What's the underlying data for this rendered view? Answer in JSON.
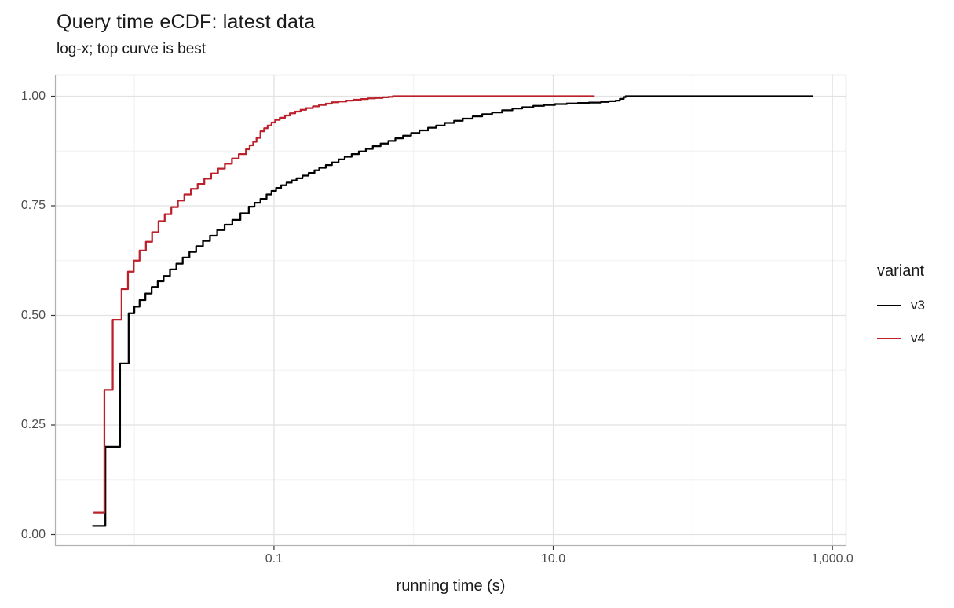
{
  "title": "Query time eCDF: latest data",
  "subtitle": "log-x; top curve is best",
  "chart_data": {
    "type": "line",
    "variant_style": "ecdf-step",
    "title": "Query time eCDF: latest data",
    "subtitle": "log-x; top curve is best",
    "xlabel": "running time (s)",
    "ylabel": "",
    "x_scale": "log10",
    "x_domain": [
      0.0027,
      1260
    ],
    "ylim": [
      0,
      1
    ],
    "grid": true,
    "legend_position": "right",
    "legend_title": "variant",
    "x_major_ticks": [
      {
        "value": 0.1,
        "label": "0.1"
      },
      {
        "value": 10,
        "label": "10.0"
      },
      {
        "value": 1000,
        "label": "1,000.0"
      }
    ],
    "x_minor_ticks": [
      0.01,
      1,
      100
    ],
    "y_major_ticks": [
      {
        "value": 0.0,
        "label": "0.00"
      },
      {
        "value": 0.25,
        "label": "0.25"
      },
      {
        "value": 0.5,
        "label": "0.50"
      },
      {
        "value": 0.75,
        "label": "0.75"
      },
      {
        "value": 1.0,
        "label": "1.00"
      }
    ],
    "y_minor_ticks": [
      0.125,
      0.375,
      0.625,
      0.875
    ],
    "theme": {
      "grid_major": "#e2e2e2",
      "grid_minor": "#f0f0f0",
      "panel_border": "#b0b0b0",
      "tick_mark": "#333333",
      "tick_text": "#4d4d4d",
      "text": "#1a1a1a",
      "background": "#ffffff"
    },
    "series": [
      {
        "name": "v3",
        "color": "#000000",
        "points": [
          [
            0.005,
            0.02
          ],
          [
            0.0062,
            0.2
          ],
          [
            0.0079,
            0.39
          ],
          [
            0.0091,
            0.505
          ],
          [
            0.01,
            0.52
          ],
          [
            0.0109,
            0.535
          ],
          [
            0.012,
            0.55
          ],
          [
            0.0133,
            0.565
          ],
          [
            0.0147,
            0.578
          ],
          [
            0.0162,
            0.59
          ],
          [
            0.018,
            0.605
          ],
          [
            0.02,
            0.618
          ],
          [
            0.0222,
            0.632
          ],
          [
            0.0248,
            0.645
          ],
          [
            0.0277,
            0.658
          ],
          [
            0.031,
            0.67
          ],
          [
            0.0348,
            0.682
          ],
          [
            0.0392,
            0.695
          ],
          [
            0.0443,
            0.707
          ],
          [
            0.0503,
            0.718
          ],
          [
            0.0575,
            0.733
          ],
          [
            0.066,
            0.748
          ],
          [
            0.0725,
            0.757
          ],
          [
            0.08,
            0.766
          ],
          [
            0.0885,
            0.776
          ],
          [
            0.096,
            0.784
          ],
          [
            0.1035,
            0.791
          ],
          [
            0.1125,
            0.797
          ],
          [
            0.123,
            0.803
          ],
          [
            0.134,
            0.808
          ],
          [
            0.145,
            0.813
          ],
          [
            0.16,
            0.819
          ],
          [
            0.177,
            0.825
          ],
          [
            0.195,
            0.831
          ],
          [
            0.211,
            0.837
          ],
          [
            0.235,
            0.843
          ],
          [
            0.26,
            0.849
          ],
          [
            0.29,
            0.856
          ],
          [
            0.321,
            0.862
          ],
          [
            0.36,
            0.868
          ],
          [
            0.405,
            0.874
          ],
          [
            0.455,
            0.88
          ],
          [
            0.51,
            0.886
          ],
          [
            0.58,
            0.892
          ],
          [
            0.66,
            0.898
          ],
          [
            0.74,
            0.904
          ],
          [
            0.84,
            0.91
          ],
          [
            0.96,
            0.916
          ],
          [
            1.1,
            0.922
          ],
          [
            1.27,
            0.928
          ],
          [
            1.45,
            0.933
          ],
          [
            1.67,
            0.939
          ],
          [
            1.95,
            0.944
          ],
          [
            2.25,
            0.949
          ],
          [
            2.65,
            0.954
          ],
          [
            3.1,
            0.959
          ],
          [
            3.65,
            0.963
          ],
          [
            4.3,
            0.968
          ],
          [
            5.1,
            0.972
          ],
          [
            6.0,
            0.975
          ],
          [
            7.2,
            0.978
          ],
          [
            8.6,
            0.98
          ],
          [
            10.3,
            0.982
          ],
          [
            12.5,
            0.9835
          ],
          [
            15.0,
            0.9845
          ],
          [
            18.0,
            0.9855
          ],
          [
            22.0,
            0.987
          ],
          [
            25.0,
            0.9885
          ],
          [
            28.0,
            0.99
          ],
          [
            30.0,
            0.994
          ],
          [
            32.0,
            0.998
          ],
          [
            33.0,
            1.0
          ],
          [
            722.0,
            1.0
          ]
        ]
      },
      {
        "name": "v4",
        "color": "#bb202b",
        "points": [
          [
            0.0051,
            0.05
          ],
          [
            0.0061,
            0.33
          ],
          [
            0.007,
            0.49
          ],
          [
            0.0081,
            0.56
          ],
          [
            0.009,
            0.6
          ],
          [
            0.0099,
            0.625
          ],
          [
            0.0109,
            0.648
          ],
          [
            0.0121,
            0.668
          ],
          [
            0.0134,
            0.69
          ],
          [
            0.0149,
            0.715
          ],
          [
            0.0165,
            0.731
          ],
          [
            0.0184,
            0.747
          ],
          [
            0.0205,
            0.762
          ],
          [
            0.0228,
            0.776
          ],
          [
            0.0254,
            0.789
          ],
          [
            0.0284,
            0.8
          ],
          [
            0.0317,
            0.812
          ],
          [
            0.0355,
            0.824
          ],
          [
            0.0397,
            0.835
          ],
          [
            0.0445,
            0.846
          ],
          [
            0.05,
            0.858
          ],
          [
            0.056,
            0.868
          ],
          [
            0.063,
            0.879
          ],
          [
            0.067,
            0.888
          ],
          [
            0.071,
            0.896
          ],
          [
            0.075,
            0.905
          ],
          [
            0.08,
            0.92
          ],
          [
            0.085,
            0.927
          ],
          [
            0.09,
            0.933
          ],
          [
            0.096,
            0.94
          ],
          [
            0.102,
            0.946
          ],
          [
            0.11,
            0.951
          ],
          [
            0.12,
            0.956
          ],
          [
            0.13,
            0.961
          ],
          [
            0.142,
            0.965
          ],
          [
            0.155,
            0.969
          ],
          [
            0.17,
            0.973
          ],
          [
            0.19,
            0.977
          ],
          [
            0.21,
            0.98
          ],
          [
            0.235,
            0.983
          ],
          [
            0.26,
            0.986
          ],
          [
            0.29,
            0.988
          ],
          [
            0.33,
            0.99
          ],
          [
            0.37,
            0.992
          ],
          [
            0.42,
            0.9935
          ],
          [
            0.47,
            0.995
          ],
          [
            0.53,
            0.996
          ],
          [
            0.6,
            0.9975
          ],
          [
            0.66,
            0.9985
          ],
          [
            0.71,
            1.0
          ],
          [
            19.8,
            1.0
          ]
        ]
      }
    ]
  }
}
